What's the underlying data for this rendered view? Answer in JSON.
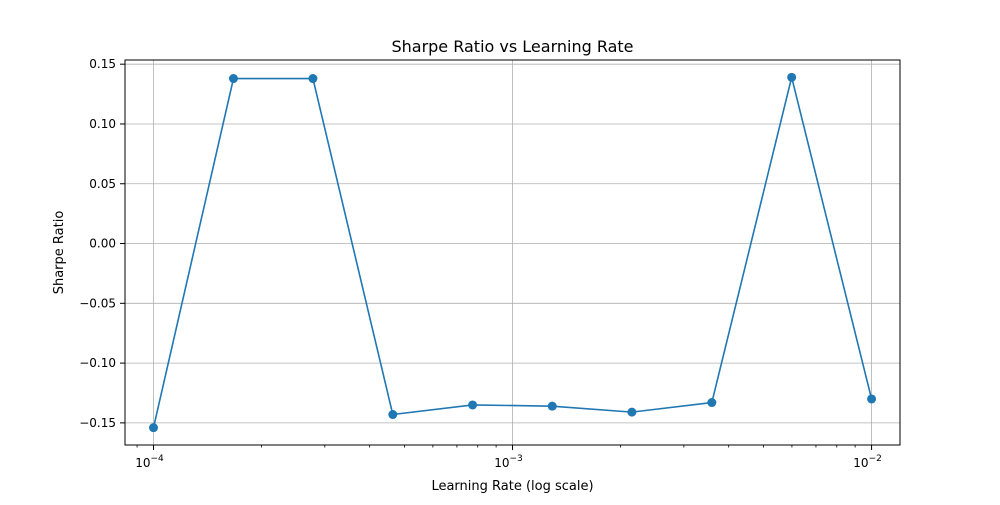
{
  "chart_data": {
    "type": "line",
    "title": "Sharpe Ratio vs Learning Rate",
    "xlabel": "Learning Rate (log scale)",
    "ylabel": "Sharpe Ratio",
    "x_scale": "log",
    "xlim": [
      8.33e-05,
      0.012
    ],
    "ylim": [
      -0.1685,
      0.1535
    ],
    "grid": true,
    "marker": "circle",
    "series_color": "#1f77b4",
    "x_ticks": [
      {
        "value": 0.0001,
        "base": "10",
        "exp": "−4"
      },
      {
        "value": 0.001,
        "base": "10",
        "exp": "−3"
      },
      {
        "value": 0.01,
        "base": "10",
        "exp": "−2"
      }
    ],
    "y_ticks": [
      {
        "value": 0.15,
        "label": "0.15"
      },
      {
        "value": 0.1,
        "label": "0.10"
      },
      {
        "value": 0.05,
        "label": "0.05"
      },
      {
        "value": 0.0,
        "label": "0.00"
      },
      {
        "value": -0.05,
        "label": "−0.05"
      },
      {
        "value": -0.1,
        "label": "−0.10"
      },
      {
        "value": -0.15,
        "label": "−0.15"
      }
    ],
    "series": [
      {
        "name": "Sharpe Ratio",
        "x": [
          0.0001,
          0.000167,
          0.000278,
          0.000464,
          0.000774,
          0.00129,
          0.00215,
          0.00359,
          0.00599,
          0.01
        ],
        "y": [
          -0.154,
          0.138,
          0.138,
          -0.143,
          -0.135,
          -0.136,
          -0.141,
          -0.133,
          0.139,
          -0.13
        ]
      }
    ]
  }
}
